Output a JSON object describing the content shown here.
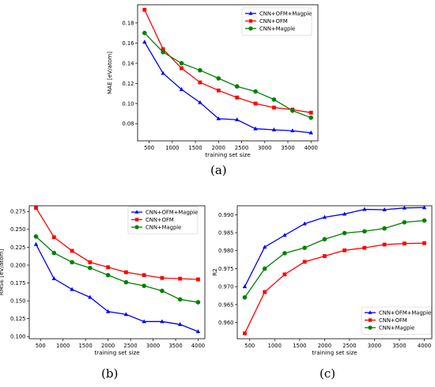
{
  "captions": {
    "a": "(a)",
    "b": "(b)",
    "c": "(c)"
  },
  "colors": {
    "cnn_ofm_magpie": "#0000ff",
    "cnn_ofm": "#ff0000",
    "cnn_magpie": "#008000"
  },
  "chart_data": [
    {
      "type": "line",
      "xlabel": "training set size",
      "ylabel": "MAE [eV/atom]",
      "xlim": [
        250,
        4150
      ],
      "ylim": [
        0.063,
        0.198
      ],
      "xticks": [
        500,
        1000,
        1500,
        2000,
        2500,
        3000,
        3500,
        4000
      ],
      "yticks": [
        0.08,
        0.1,
        0.12,
        0.14,
        0.16,
        0.18
      ],
      "ytick_labels": [
        "0.08",
        "0.10",
        "0.12",
        "0.14",
        "0.16",
        "0.18"
      ],
      "legend_position": "top-right",
      "x": [
        400,
        800,
        1200,
        1600,
        2000,
        2400,
        2800,
        3200,
        3600,
        4000
      ],
      "series": [
        {
          "name": "CNN+OFM+Magpie",
          "marker": "triangle",
          "color": "#0000ff",
          "values": [
            0.161,
            0.13,
            0.114,
            0.101,
            0.085,
            0.084,
            0.075,
            0.074,
            0.073,
            0.071
          ]
        },
        {
          "name": "CNN+OFM",
          "marker": "square",
          "color": "#ff0000",
          "values": [
            0.193,
            0.154,
            0.135,
            0.121,
            0.113,
            0.106,
            0.1,
            0.096,
            0.094,
            0.091
          ]
        },
        {
          "name": "CNN+Magpie",
          "marker": "circle",
          "color": "#008000",
          "values": [
            0.17,
            0.151,
            0.14,
            0.133,
            0.125,
            0.117,
            0.112,
            0.104,
            0.093,
            0.086
          ]
        }
      ]
    },
    {
      "type": "line",
      "xlabel": "training set size",
      "ylabel": "RMSE [eV/atom]",
      "xlim": [
        250,
        4150
      ],
      "ylim": [
        0.097,
        0.283
      ],
      "xticks": [
        500,
        1000,
        1500,
        2000,
        2500,
        3000,
        3500,
        4000
      ],
      "yticks": [
        0.1,
        0.125,
        0.15,
        0.175,
        0.2,
        0.225,
        0.25,
        0.275
      ],
      "ytick_labels": [
        "0.100",
        "0.125",
        "0.150",
        "0.175",
        "0.200",
        "0.225",
        "0.250",
        "0.275"
      ],
      "legend_position": "top-right",
      "x": [
        400,
        800,
        1200,
        1600,
        2000,
        2400,
        2800,
        3200,
        3600,
        4000
      ],
      "series": [
        {
          "name": "CNN+OFM+Magpie",
          "marker": "triangle",
          "color": "#0000ff",
          "values": [
            0.229,
            0.181,
            0.166,
            0.155,
            0.135,
            0.131,
            0.121,
            0.121,
            0.117,
            0.107
          ]
        },
        {
          "name": "CNN+OFM",
          "marker": "square",
          "color": "#ff0000",
          "values": [
            0.28,
            0.239,
            0.22,
            0.204,
            0.197,
            0.19,
            0.186,
            0.182,
            0.181,
            0.18
          ]
        },
        {
          "name": "CNN+Magpie",
          "marker": "circle",
          "color": "#008000",
          "values": [
            0.24,
            0.217,
            0.204,
            0.196,
            0.186,
            0.176,
            0.171,
            0.164,
            0.152,
            0.148
          ]
        }
      ]
    },
    {
      "type": "line",
      "xlabel": "training set size",
      "ylabel": "R2",
      "xlim": [
        250,
        4150
      ],
      "ylim": [
        0.9555,
        0.9925
      ],
      "xticks": [
        500,
        1000,
        1500,
        2000,
        2500,
        3000,
        3500,
        4000
      ],
      "yticks": [
        0.96,
        0.965,
        0.97,
        0.975,
        0.98,
        0.985,
        0.99
      ],
      "ytick_labels": [
        "0.960",
        "0.965",
        "0.970",
        "0.975",
        "0.980",
        "0.985",
        "0.990"
      ],
      "legend_position": "bottom-right",
      "x": [
        400,
        800,
        1200,
        1600,
        2000,
        2400,
        2800,
        3200,
        3600,
        4000
      ],
      "series": [
        {
          "name": "CNN+OFM+Magpie",
          "marker": "triangle",
          "color": "#0000ff",
          "values": [
            0.97,
            0.981,
            0.9843,
            0.9875,
            0.9893,
            0.9902,
            0.9915,
            0.9914,
            0.9919,
            0.992
          ]
        },
        {
          "name": "CNN+OFM",
          "marker": "square",
          "color": "#ff0000",
          "values": [
            0.957,
            0.9685,
            0.9734,
            0.9769,
            0.9785,
            0.9801,
            0.9808,
            0.9817,
            0.982,
            0.9821
          ]
        },
        {
          "name": "CNN+Magpie",
          "marker": "circle",
          "color": "#008000",
          "values": [
            0.967,
            0.975,
            0.9793,
            0.9808,
            0.9832,
            0.9849,
            0.9854,
            0.9862,
            0.9879,
            0.9884
          ]
        }
      ]
    }
  ]
}
